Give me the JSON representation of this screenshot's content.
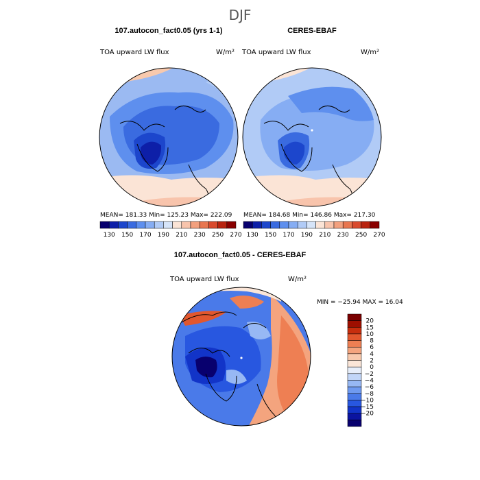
{
  "figure": {
    "season_title": "DJF"
  },
  "panels": [
    {
      "title": "107.autocon_fact0.05 (yrs 1-1)",
      "variable": "TOA upward LW flux",
      "units": "W/m²",
      "stats": {
        "mean": "181.33",
        "min": "125.23",
        "max": "222.09"
      },
      "stats_text": "MEAN= 181.33   Min= 125.23   Max= 222.09"
    },
    {
      "title": "CERES-EBAF",
      "variable": "TOA upward LW flux",
      "units": "W/m²",
      "stats": {
        "mean": "184.68",
        "min": "146.86",
        "max": "217.30"
      },
      "stats_text": "MEAN= 184.68   Min= 146.86   Max= 217.30"
    },
    {
      "title": "107.autocon_fact0.05 - CERES-EBAF",
      "variable": "TOA upward LW flux",
      "units": "W/m²",
      "stats": {
        "min": "-25.94",
        "max": "16.04"
      },
      "stats_text": "MIN = −25.94  MAX =   16.04"
    }
  ],
  "colorbars": {
    "absolute": {
      "colors": [
        "#08006e",
        "#0d1fa8",
        "#1c46cc",
        "#3a6be0",
        "#5e8fee",
        "#86adf3",
        "#b1cbf6",
        "#d6e4f8",
        "#fbe4d6",
        "#f8c4ac",
        "#f2a07e",
        "#e8764f",
        "#d94a2d",
        "#b8230f",
        "#890000"
      ],
      "labels": [
        "130",
        "150",
        "170",
        "190",
        "210",
        "230",
        "250",
        "270"
      ]
    },
    "difference": {
      "colors": [
        "#08006e",
        "#0b14a0",
        "#1234c8",
        "#2857e0",
        "#4a7ae9",
        "#6f9af0",
        "#97b8f4",
        "#c2d6f8",
        "#e7eefa",
        "#fbe6d8",
        "#f8c9ad",
        "#f4a47e",
        "#ee7f53",
        "#e2572e",
        "#c72e0e",
        "#9e0f00",
        "#7a0000"
      ],
      "labels": [
        "20",
        "15",
        "10",
        "8",
        "6",
        "4",
        "2",
        "0",
        "−2",
        "−4",
        "−6",
        "−8",
        "−10",
        "−15",
        "−20"
      ]
    }
  },
  "chart_data": [
    {
      "type": "heatmap",
      "title": "107.autocon_fact0.05 (yrs 1-1)",
      "subtitle": "TOA upward LW flux",
      "units": "W/m²",
      "projection": "north polar stereographic",
      "summary": {
        "mean": 181.33,
        "min": 125.23,
        "max": 222.09
      },
      "color_levels": [
        130,
        140,
        150,
        160,
        170,
        180,
        190,
        200,
        210,
        220,
        230,
        240,
        250,
        260,
        270
      ]
    },
    {
      "type": "heatmap",
      "title": "CERES-EBAF",
      "subtitle": "TOA upward LW flux",
      "units": "W/m²",
      "projection": "north polar stereographic",
      "summary": {
        "mean": 184.68,
        "min": 146.86,
        "max": 217.3
      },
      "color_levels": [
        130,
        140,
        150,
        160,
        170,
        180,
        190,
        200,
        210,
        220,
        230,
        240,
        250,
        260,
        270
      ]
    },
    {
      "type": "heatmap",
      "title": "107.autocon_fact0.05 - CERES-EBAF",
      "subtitle": "TOA upward LW flux",
      "units": "W/m²",
      "projection": "north polar stereographic",
      "summary": {
        "min": -25.94,
        "max": 16.04
      },
      "color_levels": [
        -20,
        -15,
        -10,
        -8,
        -6,
        -4,
        -2,
        0,
        2,
        4,
        6,
        8,
        10,
        15,
        20
      ]
    }
  ]
}
